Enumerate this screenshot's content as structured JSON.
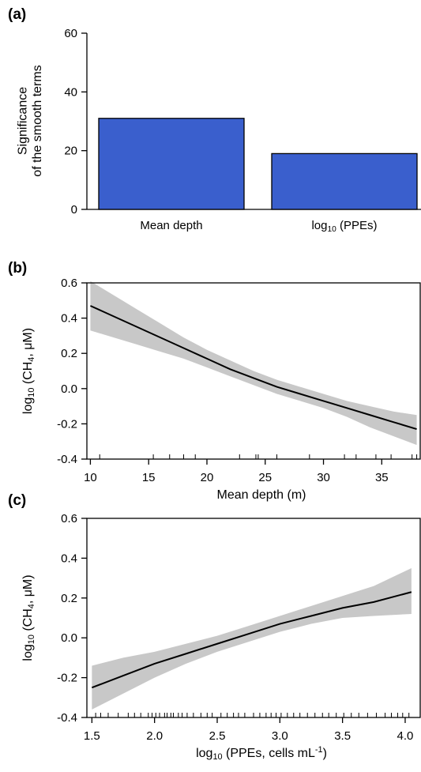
{
  "chart_data": [
    {
      "panel": "(a)",
      "type": "bar",
      "categories": [
        "Mean depth",
        "log10 (PPEs)"
      ],
      "category_labels": [
        {
          "parts": [
            {
              "t": "Mean depth"
            }
          ]
        },
        {
          "parts": [
            {
              "t": "log"
            },
            {
              "t": "10",
              "sub": true
            },
            {
              "t": " (PPEs)"
            }
          ]
        }
      ],
      "values": [
        31,
        19
      ],
      "bar_color": "#3a5fcd",
      "ylabel_lines": [
        "Significance",
        "of the smooth terms"
      ],
      "ylim": [
        0,
        60
      ],
      "yticks": [
        0,
        20,
        40,
        60
      ]
    },
    {
      "panel": "(b)",
      "type": "line",
      "xlabel": "Mean depth (m)",
      "ylabel_parts": [
        {
          "t": "log"
        },
        {
          "t": "10",
          "sub": true
        },
        {
          "t": " (CH"
        },
        {
          "t": "4",
          "sub": true
        },
        {
          "t": ", μM)"
        }
      ],
      "xlim": [
        9.7,
        38.3
      ],
      "ylim": [
        -0.4,
        0.6
      ],
      "xticks": [
        10,
        15,
        20,
        25,
        30,
        35
      ],
      "yticks": [
        -0.4,
        -0.2,
        0.0,
        0.2,
        0.4,
        0.6
      ],
      "ytick_labels": [
        "-0.4",
        "-0.2",
        "0.0",
        "0.2",
        "0.4",
        "0.6"
      ],
      "x": [
        10,
        12,
        14,
        16,
        18,
        20,
        22,
        24,
        26,
        28,
        30,
        32,
        34,
        36,
        38
      ],
      "y": [
        0.47,
        0.41,
        0.35,
        0.29,
        0.23,
        0.17,
        0.11,
        0.06,
        0.01,
        -0.03,
        -0.07,
        -0.11,
        -0.15,
        -0.19,
        -0.23
      ],
      "lower": [
        0.33,
        0.29,
        0.25,
        0.21,
        0.17,
        0.12,
        0.07,
        0.02,
        -0.03,
        -0.07,
        -0.11,
        -0.16,
        -0.22,
        -0.27,
        -0.32
      ],
      "upper": [
        0.61,
        0.53,
        0.45,
        0.37,
        0.29,
        0.22,
        0.16,
        0.1,
        0.05,
        0.01,
        -0.03,
        -0.07,
        -0.1,
        -0.13,
        -0.15
      ],
      "rug": [
        10.8,
        15.4,
        16.8,
        18.0,
        19.0,
        22.8,
        24.2,
        24.4,
        26.0,
        28.8,
        31.8,
        32.8,
        34.5,
        35.8,
        37.6,
        38.0
      ]
    },
    {
      "panel": "(c)",
      "type": "line",
      "xlabel_parts": [
        {
          "t": "log"
        },
        {
          "t": "10",
          "sub": true
        },
        {
          "t": " (PPEs, cells mL"
        },
        {
          "t": "-1",
          "sup": true
        },
        {
          "t": ")"
        }
      ],
      "ylabel_parts": [
        {
          "t": "log"
        },
        {
          "t": "10",
          "sub": true
        },
        {
          "t": " (CH"
        },
        {
          "t": "4",
          "sub": true
        },
        {
          "t": ", μM)"
        }
      ],
      "xlim": [
        1.46,
        4.12
      ],
      "ylim": [
        -0.4,
        0.6
      ],
      "xticks": [
        1.5,
        2.0,
        2.5,
        3.0,
        3.5,
        4.0
      ],
      "xtick_labels": [
        "1.5",
        "2.0",
        "2.5",
        "3.0",
        "3.5",
        "4.0"
      ],
      "yticks": [
        -0.4,
        -0.2,
        0.0,
        0.2,
        0.4,
        0.6
      ],
      "ytick_labels": [
        "-0.4",
        "-0.2",
        "0.0",
        "0.2",
        "0.4",
        "0.6"
      ],
      "x": [
        1.5,
        1.75,
        2.0,
        2.25,
        2.5,
        2.75,
        3.0,
        3.25,
        3.5,
        3.75,
        4.05
      ],
      "y": [
        -0.25,
        -0.19,
        -0.13,
        -0.08,
        -0.03,
        0.02,
        0.07,
        0.11,
        0.15,
        0.18,
        0.23
      ],
      "lower": [
        -0.36,
        -0.28,
        -0.2,
        -0.13,
        -0.07,
        -0.02,
        0.03,
        0.07,
        0.1,
        0.11,
        0.12
      ],
      "upper": [
        -0.14,
        -0.1,
        -0.07,
        -0.03,
        0.01,
        0.06,
        0.11,
        0.16,
        0.21,
        0.26,
        0.35
      ],
      "rug": [
        1.53,
        1.57,
        1.63,
        1.71,
        1.79,
        1.84,
        1.89,
        1.95,
        1.98,
        2.01,
        2.04,
        2.08,
        2.1,
        2.13,
        2.15,
        2.19,
        2.22,
        2.26,
        2.31,
        2.37,
        2.42,
        2.46,
        2.53,
        2.58,
        2.63,
        2.67,
        2.72,
        2.79,
        2.84,
        2.89,
        2.93,
        2.97,
        3.01,
        3.06,
        3.11,
        3.16,
        3.22,
        3.28,
        3.34,
        3.39,
        3.45,
        3.51,
        3.57,
        3.63,
        3.7,
        3.77,
        3.84,
        3.89,
        3.94,
        3.98,
        4.03
      ]
    }
  ]
}
